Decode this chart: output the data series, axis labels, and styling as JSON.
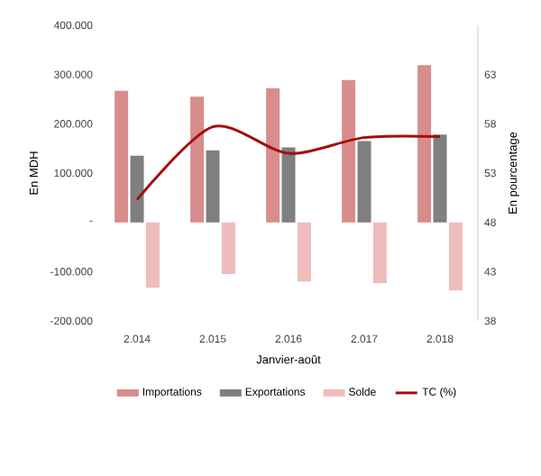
{
  "chart_data": {
    "type": "bar",
    "xlabel": "Janvier-août",
    "ylabel": "En MDH",
    "y2label": "En pourcentage",
    "categories": [
      "2.014",
      "2.015",
      "2.016",
      "2.017",
      "2.018"
    ],
    "series": [
      {
        "name": "Importations",
        "color": "#d98c8c",
        "values": [
          267000,
          255000,
          272000,
          289000,
          319000
        ]
      },
      {
        "name": "Exportations",
        "color": "#7f7f7f",
        "values": [
          135000,
          146000,
          152000,
          165000,
          178000
        ]
      },
      {
        "name": "Solde",
        "color": "#f0bcbc",
        "values": [
          -133000,
          -105000,
          -120000,
          -123000,
          -138000
        ]
      },
      {
        "name": "TC (%)",
        "type": "line",
        "axis": "y2",
        "color": "#a50e0e",
        "values": [
          50.3,
          57.7,
          55.0,
          56.6,
          56.7
        ]
      }
    ],
    "ylim": [
      -200000,
      400000
    ],
    "yticks": [
      {
        "value": -200000,
        "label": "-200.000"
      },
      {
        "value": -100000,
        "label": "-100.000"
      },
      {
        "value": 0,
        "label": "-"
      },
      {
        "value": 100000,
        "label": "100.000"
      },
      {
        "value": 200000,
        "label": "200.000"
      },
      {
        "value": 300000,
        "label": "300.000"
      },
      {
        "value": 400000,
        "label": "400.000"
      }
    ],
    "y2lim": [
      38,
      68
    ],
    "y2ticks": [
      38,
      43,
      48,
      53,
      58,
      63
    ],
    "legend": "bottom",
    "marker": "none",
    "grid": false
  }
}
